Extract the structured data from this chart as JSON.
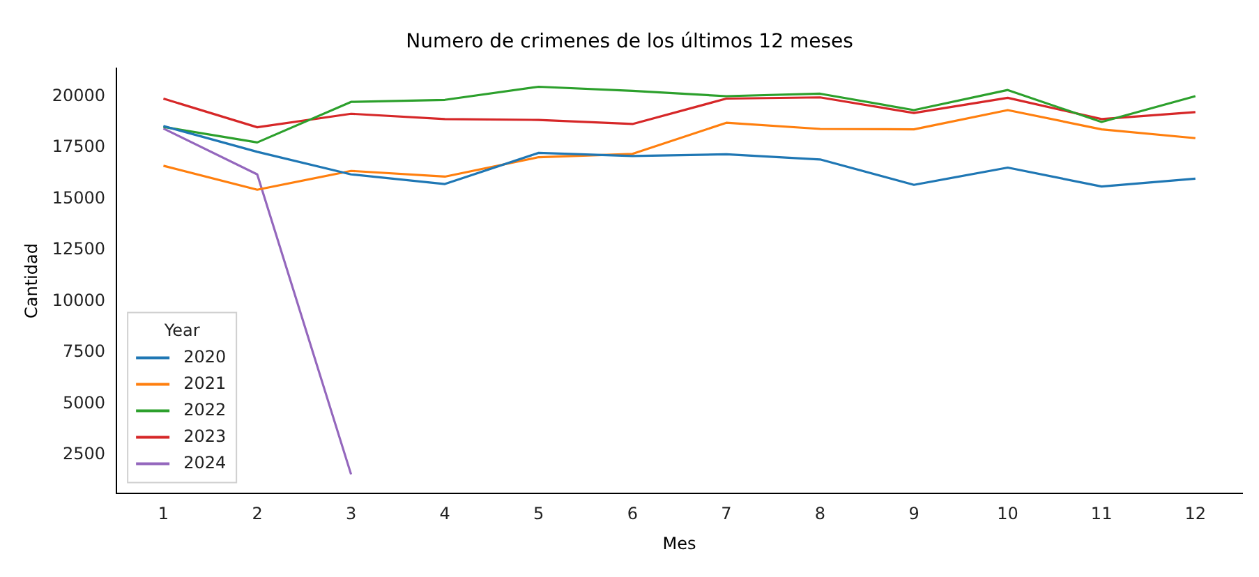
{
  "chart_data": {
    "type": "line",
    "title": "Numero de crimenes de los últimos 12 meses",
    "xlabel": "Mes",
    "ylabel": "Cantidad",
    "legend_title": "Year",
    "legend": "bottom left",
    "grid": false,
    "x": [
      1,
      2,
      3,
      4,
      5,
      6,
      7,
      8,
      9,
      10,
      11,
      12
    ],
    "xlim": [
      0.5,
      12.5
    ],
    "xticks": [
      1,
      2,
      3,
      4,
      5,
      6,
      7,
      8,
      9,
      10,
      11,
      12
    ],
    "ylim": [
      605,
      21395
    ],
    "yticks": [
      2500,
      5000,
      7500,
      10000,
      12500,
      15000,
      17500,
      20000
    ],
    "series": [
      {
        "name": "2020",
        "color": "#1f77b4",
        "values": [
          18560,
          17300,
          16200,
          15730,
          17250,
          17100,
          17180,
          16930,
          15690,
          16530,
          15610,
          15990
        ]
      },
      {
        "name": "2021",
        "color": "#ff7f0e",
        "values": [
          16620,
          15450,
          16370,
          16090,
          17040,
          17200,
          18720,
          18420,
          18400,
          19340,
          18400,
          17970
        ]
      },
      {
        "name": "2022",
        "color": "#2ca02c",
        "values": [
          18520,
          17760,
          19740,
          19840,
          20480,
          20280,
          20020,
          20140,
          19340,
          20320,
          18760,
          20020
        ]
      },
      {
        "name": "2023",
        "color": "#d62728",
        "values": [
          19900,
          18500,
          19160,
          18900,
          18860,
          18660,
          19900,
          19960,
          19200,
          19940,
          18900,
          19240
        ]
      },
      {
        "name": "2024",
        "color": "#9467bd",
        "values": [
          18440,
          16200,
          1550,
          null,
          null,
          null,
          null,
          null,
          null,
          null,
          null,
          null
        ]
      }
    ]
  }
}
